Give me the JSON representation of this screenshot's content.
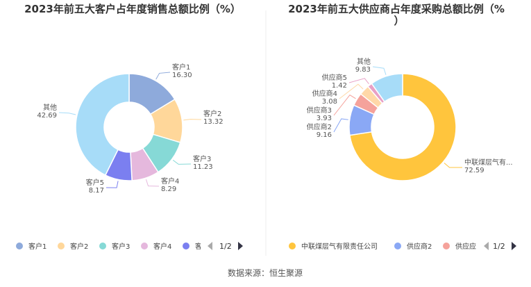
{
  "footer": "数据来源：恒生聚源",
  "chart_data": [
    {
      "type": "pie",
      "title": "2023年前五大客户占年度销售总额比例（%）",
      "categories": [
        "客户1",
        "客户2",
        "客户3",
        "客户4",
        "客户5",
        "其他"
      ],
      "values": [
        16.3,
        13.32,
        11.23,
        8.29,
        8.17,
        42.69
      ],
      "value_labels": [
        "16.30",
        "13.32",
        "11.23",
        "8.29",
        "8.17",
        "42.69"
      ],
      "colors": [
        "#8eaadb",
        "#ffd79a",
        "#86d9d6",
        "#e5b8dd",
        "#7b7ff0",
        "#a7dcf8"
      ],
      "legend": {
        "position": "bottom",
        "items": [
          "客户1",
          "客户2",
          "客户3",
          "客户4",
          "客"
        ],
        "pager": "1/2"
      }
    },
    {
      "type": "pie",
      "title_lines": [
        "2023年前五大供应商占年度采购总额比例（%",
        "）"
      ],
      "categories": [
        "中联煤层气有限责任公司",
        "供应商2",
        "供应商3",
        "供应商4",
        "供应商5",
        "其他"
      ],
      "display_labels": [
        "中联煤层气有...",
        "供应商2",
        "供应商3",
        "供应商4",
        "供应商5",
        "其他"
      ],
      "values": [
        72.59,
        9.16,
        3.93,
        3.08,
        1.42,
        9.83
      ],
      "value_labels": [
        "72.59",
        "9.16",
        "3.93",
        "3.08",
        "1.42",
        "9.83"
      ],
      "colors": [
        "#ffc53d",
        "#8aa8f5",
        "#f5a29b",
        "#ffd8a8",
        "#e8a0c6",
        "#a7dcf8"
      ],
      "legend": {
        "position": "bottom",
        "items": [
          "中联煤层气有限责任公司",
          "供应商2",
          "供应应"
        ],
        "pager": "1/2"
      }
    }
  ]
}
